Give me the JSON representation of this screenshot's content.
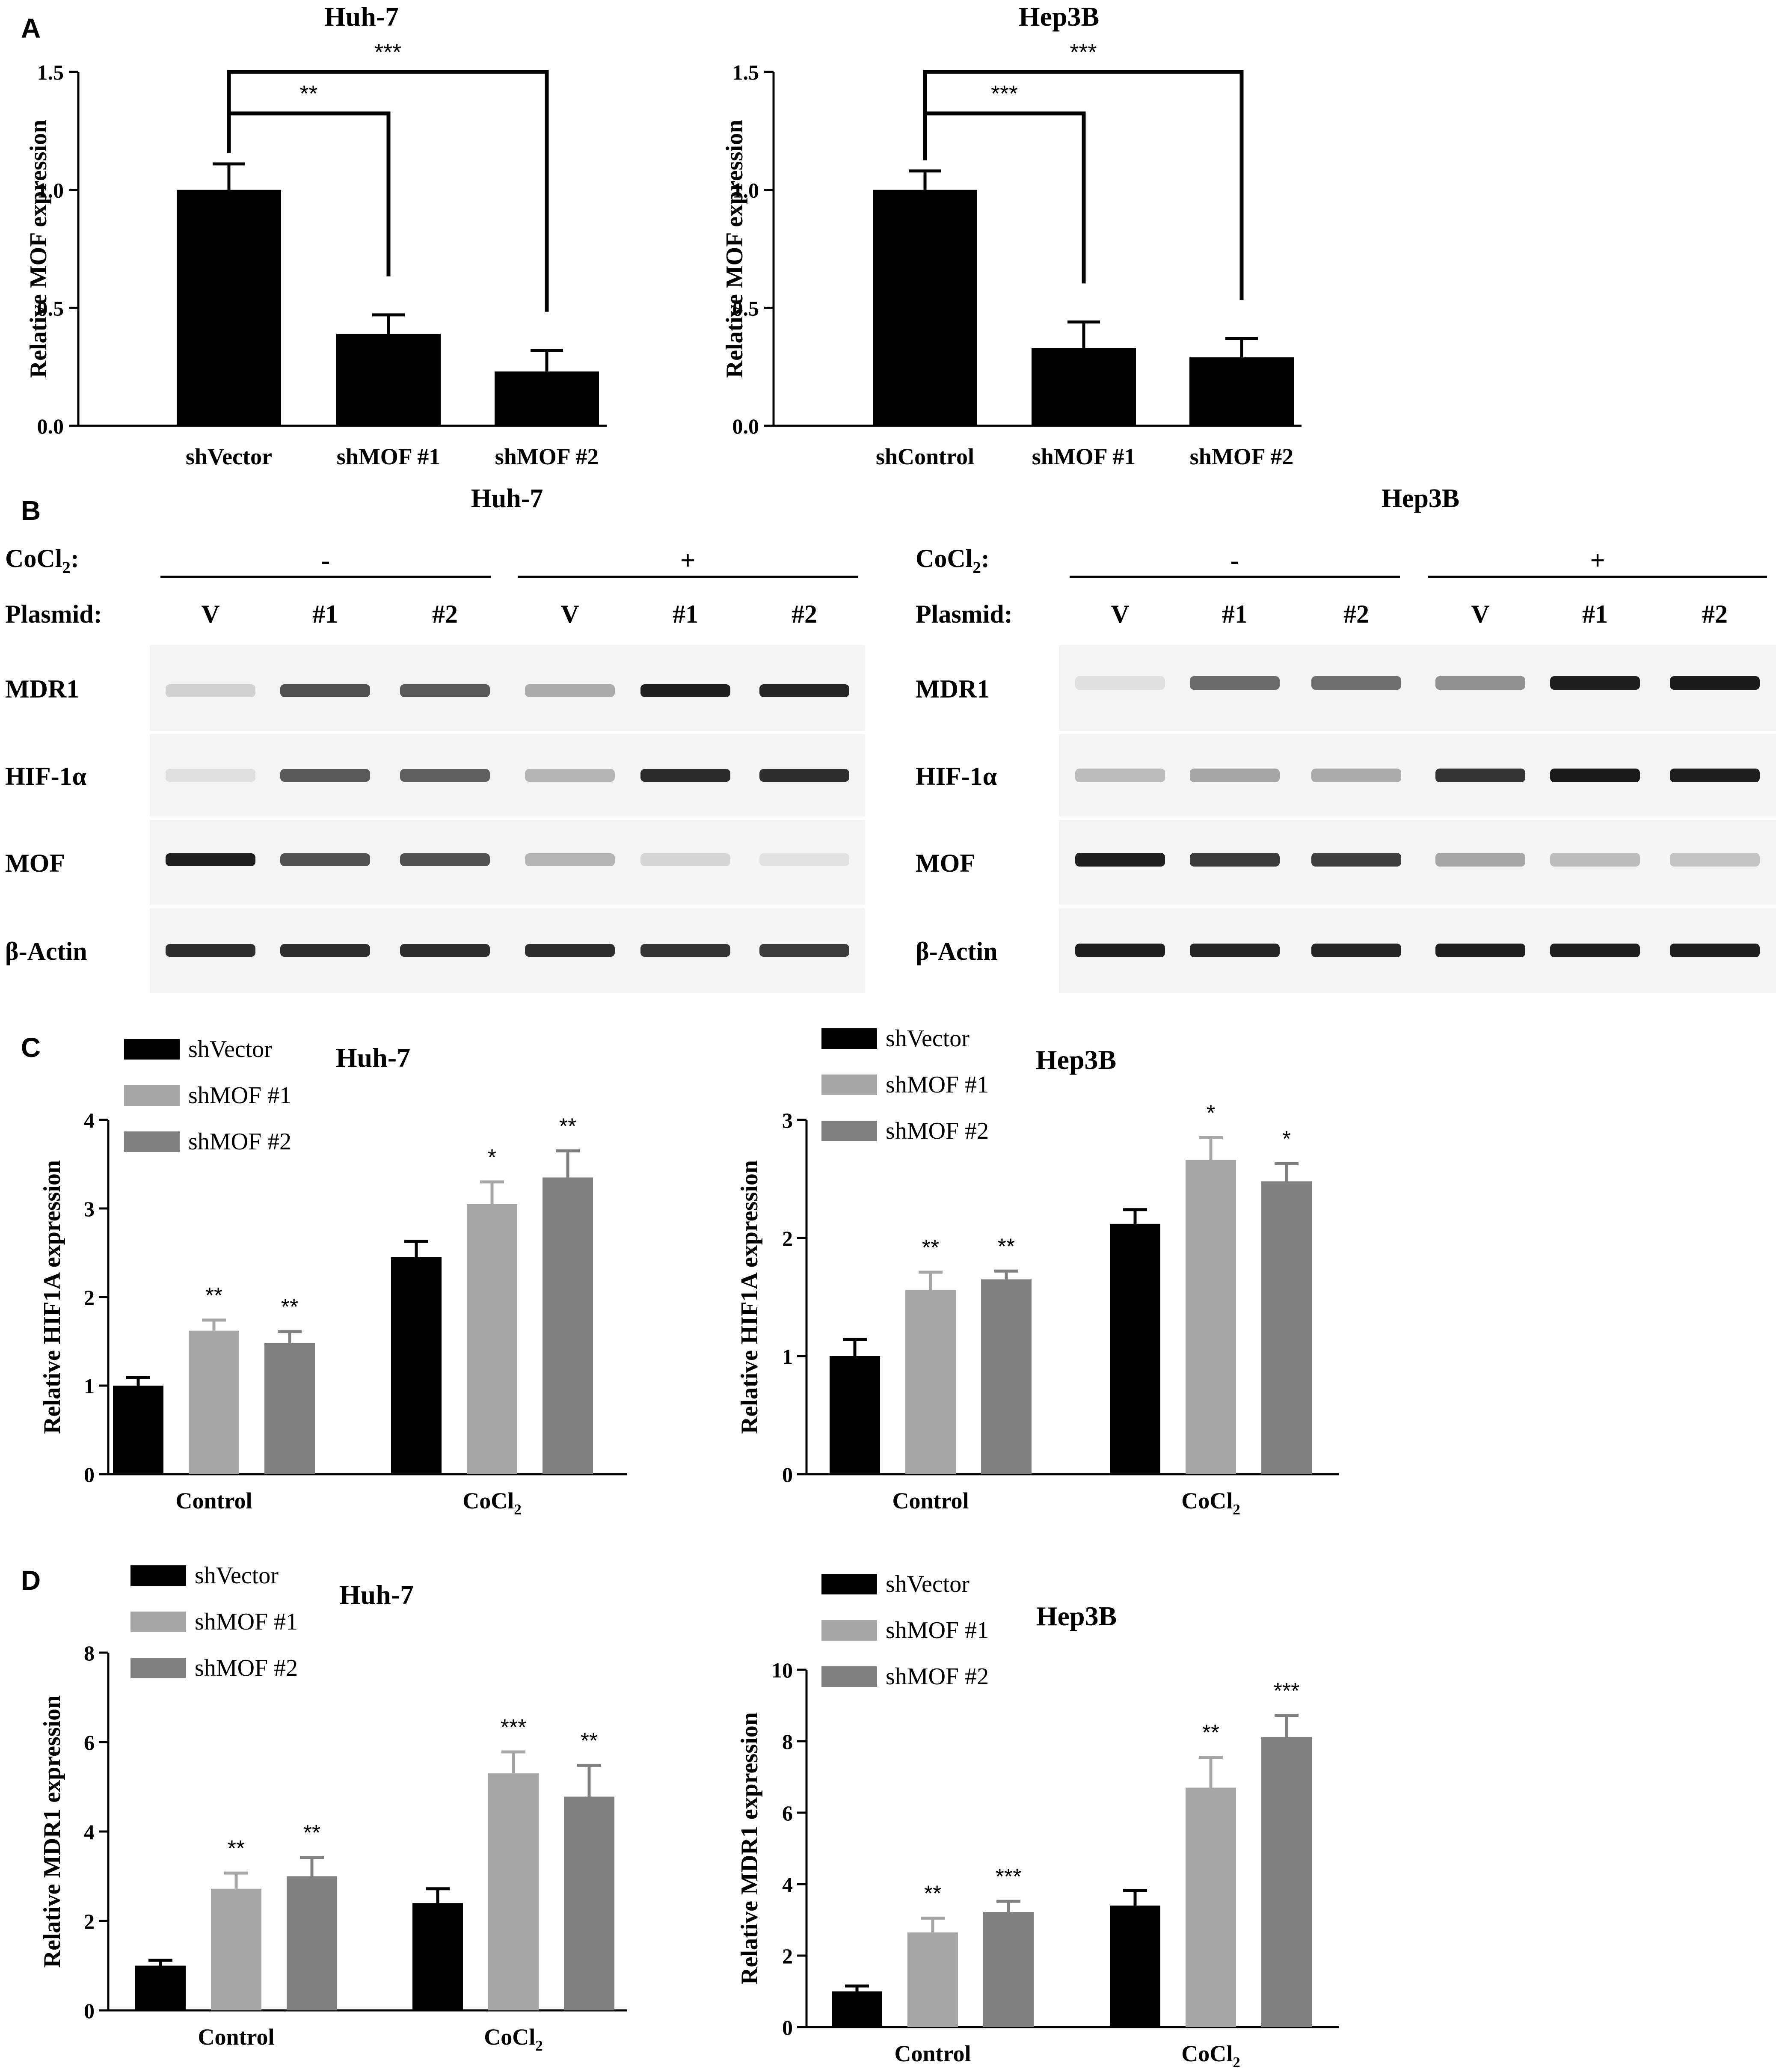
{
  "panel_labels": [
    "A",
    "B",
    "C",
    "D"
  ],
  "colors": {
    "shVector": "#000000",
    "shMOF1": "#a6a6a9",
    "shMOF2": "#808082",
    "band": "#1a1a1a",
    "blot_bg": "#f4f4f4"
  },
  "chart_data": [
    {
      "id": "A-Huh7",
      "type": "bar",
      "title": "Huh-7",
      "xlabel": "",
      "ylabel": "Relative MOF expression",
      "ylim": [
        0,
        1.5
      ],
      "yticks": [
        "0.0",
        "0.5",
        "1.0",
        "1.5"
      ],
      "categories": [
        "shVector",
        "shMOF #1",
        "shMOF #2"
      ],
      "values": [
        1.0,
        0.39,
        0.23
      ],
      "errors": [
        0.11,
        0.08,
        0.09
      ],
      "significance": [
        {
          "from": 0,
          "to": 1,
          "label": "**"
        },
        {
          "from": 0,
          "to": 2,
          "label": "***"
        }
      ]
    },
    {
      "id": "A-Hep3B",
      "type": "bar",
      "title": "Hep3B",
      "xlabel": "",
      "ylabel": "Relative MOF expression",
      "ylim": [
        0,
        1.5
      ],
      "yticks": [
        "0.0",
        "0.5",
        "1.0",
        "1.5"
      ],
      "categories": [
        "shControl",
        "shMOF #1",
        "shMOF #2"
      ],
      "values": [
        1.0,
        0.33,
        0.29
      ],
      "errors": [
        0.08,
        0.11,
        0.08
      ],
      "significance": [
        {
          "from": 0,
          "to": 1,
          "label": "***"
        },
        {
          "from": 0,
          "to": 2,
          "label": "***"
        }
      ]
    },
    {
      "id": "C-Huh7",
      "type": "bar",
      "title": "Huh-7",
      "xlabel": "",
      "ylabel": "Relative HIF1A expression",
      "ylim": [
        0,
        4
      ],
      "yticks": [
        "0",
        "1",
        "2",
        "3",
        "4"
      ],
      "categories": [
        "Control",
        "CoCl2"
      ],
      "series": [
        {
          "name": "shVector",
          "values": [
            1.0,
            2.45
          ],
          "errors": [
            0.09,
            0.18
          ],
          "stars": [
            "",
            ""
          ]
        },
        {
          "name": "shMOF #1",
          "values": [
            1.62,
            3.05
          ],
          "errors": [
            0.12,
            0.25
          ],
          "stars": [
            "**",
            "*"
          ]
        },
        {
          "name": "shMOF #2",
          "values": [
            1.48,
            3.35
          ],
          "errors": [
            0.13,
            0.3
          ],
          "stars": [
            "**",
            "**"
          ]
        }
      ]
    },
    {
      "id": "C-Hep3B",
      "type": "bar",
      "title": "Hep3B",
      "xlabel": "",
      "ylabel": "Relative HIF1A expression",
      "ylim": [
        0,
        3
      ],
      "yticks": [
        "0",
        "1",
        "2",
        "3"
      ],
      "categories": [
        "Control",
        "CoCl2"
      ],
      "series": [
        {
          "name": "shVector",
          "values": [
            1.0,
            2.12
          ],
          "errors": [
            0.14,
            0.12
          ],
          "stars": [
            "",
            ""
          ]
        },
        {
          "name": "shMOF #1",
          "values": [
            1.56,
            2.66
          ],
          "errors": [
            0.15,
            0.19
          ],
          "stars": [
            "**",
            "*"
          ]
        },
        {
          "name": "shMOF #2",
          "values": [
            1.65,
            2.48
          ],
          "errors": [
            0.07,
            0.15
          ],
          "stars": [
            "**",
            "*"
          ]
        }
      ]
    },
    {
      "id": "D-Huh7",
      "type": "bar",
      "title": "Huh-7",
      "xlabel": "",
      "ylabel": "Relative MDR1 expression",
      "ylim": [
        0,
        8
      ],
      "yticks": [
        "0",
        "2",
        "4",
        "6",
        "8"
      ],
      "categories": [
        "Control",
        "CoCl2"
      ],
      "series": [
        {
          "name": "shVector",
          "values": [
            1.0,
            2.4
          ],
          "errors": [
            0.12,
            0.32
          ],
          "stars": [
            "",
            ""
          ]
        },
        {
          "name": "shMOF #1",
          "values": [
            2.72,
            5.3
          ],
          "errors": [
            0.35,
            0.48
          ],
          "stars": [
            "**",
            "***"
          ]
        },
        {
          "name": "shMOF #2",
          "values": [
            3.0,
            4.78
          ],
          "errors": [
            0.42,
            0.7
          ],
          "stars": [
            "**",
            "**"
          ]
        }
      ]
    },
    {
      "id": "D-Hep3B",
      "type": "bar",
      "title": "Hep3B",
      "xlabel": "",
      "ylabel": "Relative MDR1 expression",
      "ylim": [
        0,
        10
      ],
      "yticks": [
        "0",
        "2",
        "4",
        "6",
        "8",
        "10"
      ],
      "categories": [
        "Control",
        "CoCl2"
      ],
      "series": [
        {
          "name": "shVector",
          "values": [
            1.0,
            3.4
          ],
          "errors": [
            0.15,
            0.42
          ],
          "stars": [
            "",
            ""
          ]
        },
        {
          "name": "shMOF #1",
          "values": [
            2.65,
            6.7
          ],
          "errors": [
            0.4,
            0.85
          ],
          "stars": [
            "**",
            "**"
          ]
        },
        {
          "name": "shMOF #2",
          "values": [
            3.22,
            8.12
          ],
          "errors": [
            0.3,
            0.6
          ],
          "stars": [
            "***",
            "***"
          ]
        }
      ]
    }
  ],
  "western_blots": [
    {
      "title": "Huh-7",
      "cocl2_label": "CoCl",
      "cocl2_sub": "2",
      "cocl2_colon": ":",
      "plasmid_label": "Plasmid:",
      "groups": [
        "-",
        "+"
      ],
      "lanes": [
        "V",
        "#1",
        "#2",
        "V",
        "#1",
        "#2"
      ],
      "rows": [
        {
          "label": "MDR1",
          "intensity": [
            0.12,
            0.72,
            0.68,
            0.3,
            0.95,
            0.92
          ]
        },
        {
          "label": "HIF-1α",
          "intensity": [
            0.05,
            0.68,
            0.65,
            0.25,
            0.9,
            0.88
          ]
        },
        {
          "label": "MOF",
          "intensity": [
            0.95,
            0.72,
            0.72,
            0.25,
            0.1,
            0.04
          ]
        },
        {
          "label": "β-Actin",
          "intensity": [
            0.88,
            0.88,
            0.88,
            0.88,
            0.85,
            0.82
          ]
        }
      ]
    },
    {
      "title": "Hep3B",
      "cocl2_label": "CoCl",
      "cocl2_sub": "2",
      "cocl2_colon": ":",
      "plasmid_label": "Plasmid:",
      "groups": [
        "-",
        "+"
      ],
      "lanes": [
        "V",
        "#1",
        "#2",
        "V",
        "#1",
        "#2"
      ],
      "rows": [
        {
          "label": "MDR1",
          "intensity": [
            0.05,
            0.6,
            0.58,
            0.42,
            0.95,
            0.97
          ]
        },
        {
          "label": "HIF-1α",
          "intensity": [
            0.22,
            0.32,
            0.3,
            0.85,
            0.97,
            0.95
          ]
        },
        {
          "label": "MOF",
          "intensity": [
            0.95,
            0.82,
            0.8,
            0.32,
            0.22,
            0.18
          ]
        },
        {
          "label": "β-Actin",
          "intensity": [
            0.95,
            0.92,
            0.92,
            0.95,
            0.95,
            0.95
          ]
        }
      ]
    }
  ]
}
